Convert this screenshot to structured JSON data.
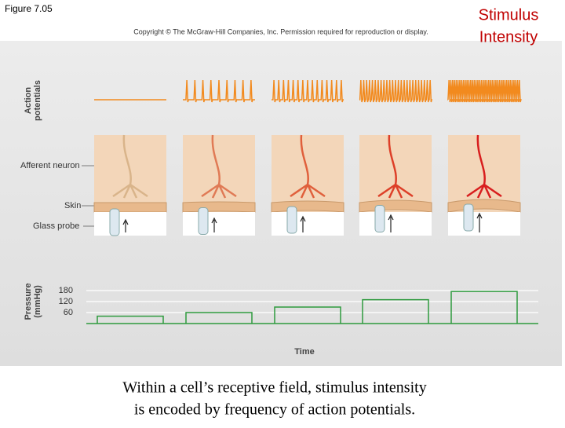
{
  "header": {
    "figure": "Figure 7.05",
    "copyright": "Copyright © The McGraw-Hill Companies, Inc. Permission required for reproduction or display.",
    "stimulus": [
      "Stimulus",
      "Intensity"
    ]
  },
  "labels": {
    "action_potentials": [
      "Action",
      "potentials"
    ],
    "afferent_neuron": "Afferent neuron",
    "skin": "Skin",
    "glass_probe": "Glass probe"
  },
  "spike_counts": [
    0,
    9,
    15,
    25,
    40
  ],
  "pressure": {
    "axis_label": [
      "Pressure",
      "(mmHg)"
    ],
    "ylim": [
      0,
      180
    ],
    "yticks": [
      60,
      120,
      180
    ],
    "levels": [
      40,
      60,
      90,
      130,
      175
    ],
    "x_label": "Time"
  },
  "caption": [
    "Within a cell’s receptive field, stimulus intensity",
    "is encoded by frequency of action potentials."
  ]
}
